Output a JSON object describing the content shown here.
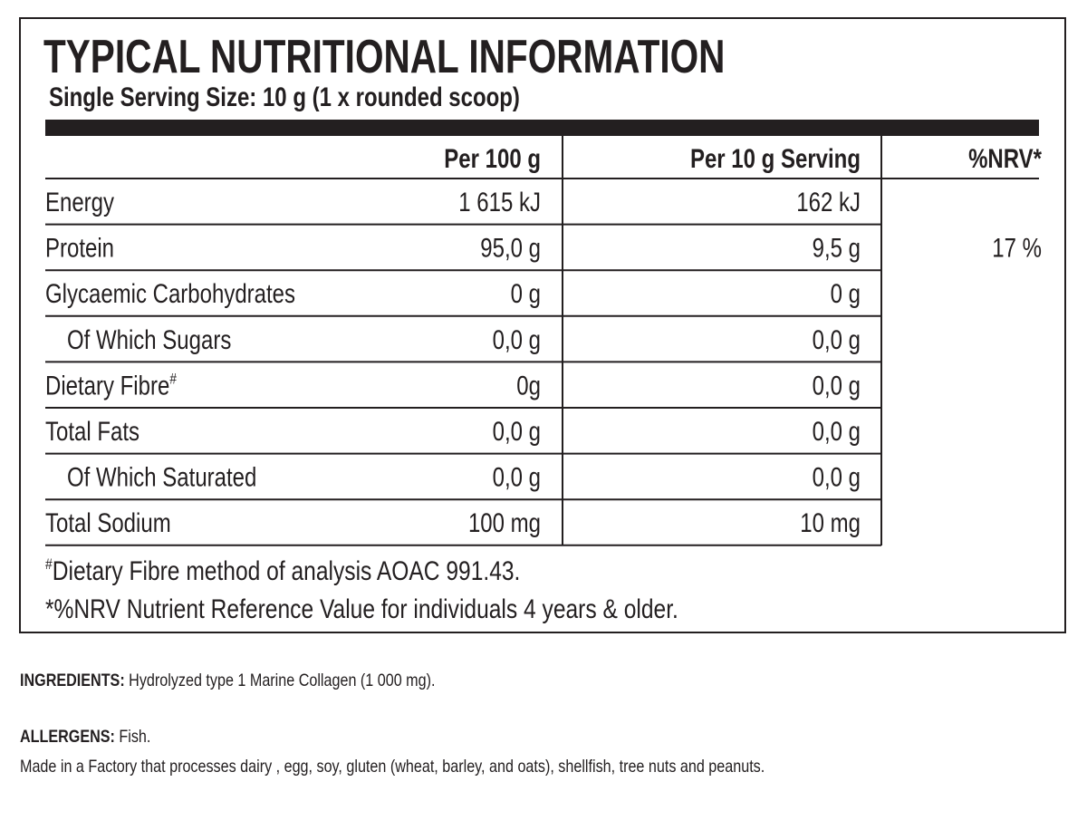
{
  "header": {
    "title": "TYPICAL NUTRITIONAL INFORMATION",
    "subtitle": "Single Serving Size: 10 g (1 x rounded scoop)"
  },
  "table": {
    "columns": [
      "Per 100 g",
      "Per 10 g Serving",
      "%NRV*"
    ],
    "rows": [
      {
        "label": "Energy",
        "per_100g": "1 615 kJ",
        "per_serving": "162 kJ"
      },
      {
        "label": "Protein",
        "per_100g": "95,0 g",
        "per_serving": "9,5 g",
        "nrv": "17 %"
      },
      {
        "label": "Glycaemic Carbohydrates",
        "per_100g": "0 g",
        "per_serving": "0 g"
      },
      {
        "label": "Of Which Sugars",
        "per_100g": "0,0 g",
        "per_serving": "0,0 g"
      },
      {
        "label": "Dietary Fibre",
        "sup": "#",
        "per_100g": "0g",
        "per_serving": "0,0 g"
      },
      {
        "label": "Total Fats",
        "per_100g": "0,0 g",
        "per_serving": "0,0 g"
      },
      {
        "label": "Of Which Saturated",
        "per_100g": "0,0 g",
        "per_serving": "0,0 g"
      },
      {
        "label": "Total Sodium",
        "per_100g": "100 mg",
        "per_serving": "10 mg"
      }
    ]
  },
  "footnotes": [
    {
      "mark": "#",
      "text": "Dietary Fibre method of analysis AOAC 991.43."
    },
    {
      "text": "*%NRV Nutrient Reference Value for individuals 4 years & older."
    }
  ],
  "ingredients": {
    "label": "INGREDIENTS:",
    "text": " Hydrolyzed type 1 Marine Collagen (1 000 mg)."
  },
  "allergens": {
    "label": "ALLERGENS:",
    "text": " Fish.",
    "note": "Made in a Factory that processes dairy , egg, soy, gluten (wheat, barley, and oats), shellfish, tree nuts and peanuts."
  }
}
